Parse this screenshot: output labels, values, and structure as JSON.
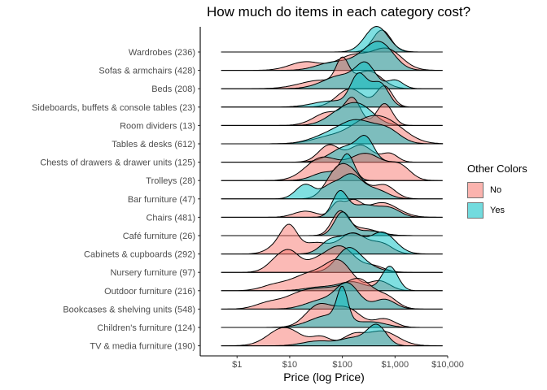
{
  "chart_data": {
    "type": "ridgeline-density",
    "title": "How much do items in each category cost?",
    "xlabel": "Price (log Price)",
    "ylabel": "",
    "x_scale": "log10",
    "xlim": [
      0.2,
      10000
    ],
    "x_ticks": [
      1,
      10,
      100,
      1000,
      10000
    ],
    "x_tick_labels": [
      "$1",
      "$10",
      "$100",
      "$1,000",
      "$10,000"
    ],
    "legend": {
      "title": "Other Colors",
      "placement": "right",
      "entries": [
        {
          "label": "No",
          "color": "#F8766D"
        },
        {
          "label": "Yes",
          "color": "#00BFC4"
        }
      ]
    },
    "categories": [
      "Wardrobes (236)",
      "Sofas & armchairs (428)",
      "Beds (208)",
      "Sideboards, buffets & console tables (23)",
      "Room dividers (13)",
      "Tables & desks (612)",
      "Chests of drawers & drawer units (125)",
      "Trolleys (28)",
      "Bar furniture (47)",
      "Chairs (481)",
      "Café furniture (26)",
      "Cabinets & cupboards (292)",
      "Nursery furniture (97)",
      "Outdoor furniture (216)",
      "Bookcases & shelving units (548)",
      "Children's furniture (124)",
      "TV & media furniture (190)"
    ],
    "series": [
      {
        "name": "No",
        "density_peaks_log10_price": [
          [
            [
              2.75,
              0.17,
              0.9
            ]
          ],
          [
            [
              1.3,
              0.3,
              0.35
            ],
            [
              2.2,
              0.3,
              0.6
            ],
            [
              2.85,
              0.28,
              0.85
            ]
          ],
          [
            [
              1.6,
              0.4,
              0.35
            ],
            [
              2.0,
              0.12,
              1.0
            ],
            [
              2.5,
              0.25,
              0.7
            ]
          ],
          [
            [
              2.15,
              0.25,
              0.75
            ],
            [
              2.8,
              0.15,
              0.85
            ]
          ],
          [
            [
              1.75,
              0.28,
              0.55
            ],
            [
              2.2,
              0.15,
              1.0
            ],
            [
              2.8,
              0.15,
              0.9
            ]
          ],
          [
            [
              1.8,
              0.35,
              0.3
            ],
            [
              2.4,
              0.3,
              0.6
            ],
            [
              2.85,
              0.35,
              0.85
            ]
          ],
          [
            [
              1.75,
              0.2,
              0.7
            ],
            [
              2.35,
              0.22,
              0.7
            ],
            [
              2.9,
              0.15,
              0.35
            ]
          ],
          [
            [
              1.6,
              0.3,
              0.9
            ],
            [
              2.45,
              0.35,
              1.1
            ],
            [
              3.1,
              0.2,
              0.5
            ]
          ],
          [
            [
              1.85,
              0.2,
              0.7
            ],
            [
              2.15,
              0.25,
              1.1
            ],
            [
              2.8,
              0.2,
              0.55
            ]
          ],
          [
            [
              1.3,
              0.22,
              0.25
            ],
            [
              1.9,
              0.12,
              0.55
            ],
            [
              2.2,
              0.15,
              0.6
            ],
            [
              2.75,
              0.3,
              0.6
            ]
          ],
          [
            [
              1.95,
              0.15,
              0.9
            ],
            [
              2.35,
              0.3,
              0.3
            ]
          ],
          [
            [
              0.85,
              0.22,
              0.45
            ],
            [
              1.0,
              0.15,
              0.8
            ],
            [
              1.5,
              0.25,
              0.45
            ],
            [
              2.2,
              0.25,
              0.85
            ],
            [
              2.75,
              0.2,
              0.4
            ]
          ],
          [
            [
              0.85,
              0.22,
              0.7
            ],
            [
              1.05,
              0.15,
              0.3
            ],
            [
              1.55,
              0.3,
              0.5
            ],
            [
              2.0,
              0.25,
              0.9
            ],
            [
              2.6,
              0.2,
              0.25
            ]
          ],
          [
            [
              0.7,
              0.25,
              0.2
            ],
            [
              1.4,
              0.35,
              0.7
            ],
            [
              1.95,
              0.25,
              1.05
            ],
            [
              2.7,
              0.2,
              0.4
            ]
          ],
          [
            [
              0.6,
              0.25,
              0.25
            ],
            [
              1.2,
              0.3,
              0.55
            ],
            [
              1.8,
              0.35,
              0.75
            ],
            [
              2.35,
              0.25,
              1.0
            ],
            [
              2.85,
              0.2,
              0.45
            ]
          ],
          [
            [
              1.55,
              0.25,
              0.9
            ],
            [
              2.1,
              0.25,
              0.75
            ],
            [
              2.8,
              0.2,
              0.35
            ]
          ],
          [
            [
              0.9,
              0.3,
              0.75
            ],
            [
              1.6,
              0.18,
              0.35
            ],
            [
              2.2,
              0.2,
              0.4
            ],
            [
              2.75,
              0.3,
              0.6
            ]
          ]
        ]
      },
      {
        "name": "Yes",
        "density_peaks_log10_price": [
          [
            [
              2.65,
              0.22,
              1.05
            ]
          ],
          [
            [
              1.8,
              0.3,
              0.3
            ],
            [
              2.45,
              0.3,
              0.5
            ],
            [
              2.75,
              0.25,
              0.85
            ]
          ],
          [
            [
              2.0,
              0.35,
              0.55
            ],
            [
              2.45,
              0.18,
              0.85
            ],
            [
              3.0,
              0.15,
              0.35
            ]
          ],
          [
            [
              1.8,
              0.35,
              0.25
            ],
            [
              2.3,
              0.15,
              1.2
            ],
            [
              2.55,
              0.15,
              0.4
            ],
            [
              2.75,
              0.15,
              0.8
            ]
          ],
          [
            [
              2.05,
              0.3,
              0.65
            ],
            [
              2.4,
              0.25,
              0.5
            ]
          ],
          [
            [
              1.8,
              0.35,
              0.4
            ],
            [
              2.3,
              0.3,
              0.8
            ],
            [
              2.85,
              0.25,
              0.55
            ]
          ],
          [
            [
              2.1,
              0.3,
              0.65
            ],
            [
              2.45,
              0.15,
              0.75
            ]
          ],
          [
            [
              2.1,
              0.13,
              1.0
            ],
            [
              1.7,
              0.25,
              0.35
            ]
          ],
          [
            [
              1.3,
              0.18,
              0.6
            ],
            [
              1.75,
              0.15,
              0.4
            ],
            [
              2.15,
              0.22,
              1.0
            ],
            [
              2.65,
              0.22,
              0.35
            ]
          ],
          [
            [
              1.95,
              0.14,
              1.0
            ],
            [
              2.4,
              0.25,
              0.5
            ],
            [
              2.9,
              0.2,
              0.35
            ]
          ],
          [
            [
              2.0,
              0.15,
              0.95
            ],
            [
              2.5,
              0.25,
              0.2
            ]
          ],
          [
            [
              1.8,
              0.2,
              0.6
            ],
            [
              2.2,
              0.18,
              0.7
            ],
            [
              2.75,
              0.25,
              0.9
            ]
          ],
          [
            [
              2.1,
              0.22,
              0.8
            ],
            [
              2.35,
              0.3,
              0.3
            ]
          ],
          [
            [
              1.6,
              0.3,
              0.15
            ],
            [
              2.2,
              0.25,
              0.35
            ],
            [
              2.9,
              0.15,
              1.0
            ]
          ],
          [
            [
              1.6,
              0.3,
              0.35
            ],
            [
              2.1,
              0.22,
              1.0
            ],
            [
              2.8,
              0.2,
              0.4
            ]
          ],
          [
            [
              1.75,
              0.35,
              0.5
            ],
            [
              2.0,
              0.1,
              1.3
            ],
            [
              2.6,
              0.25,
              0.2
            ]
          ],
          [
            [
              1.55,
              0.3,
              0.2
            ],
            [
              2.2,
              0.22,
              0.3
            ],
            [
              2.65,
              0.18,
              0.85
            ]
          ]
        ]
      }
    ],
    "grid": false
  }
}
